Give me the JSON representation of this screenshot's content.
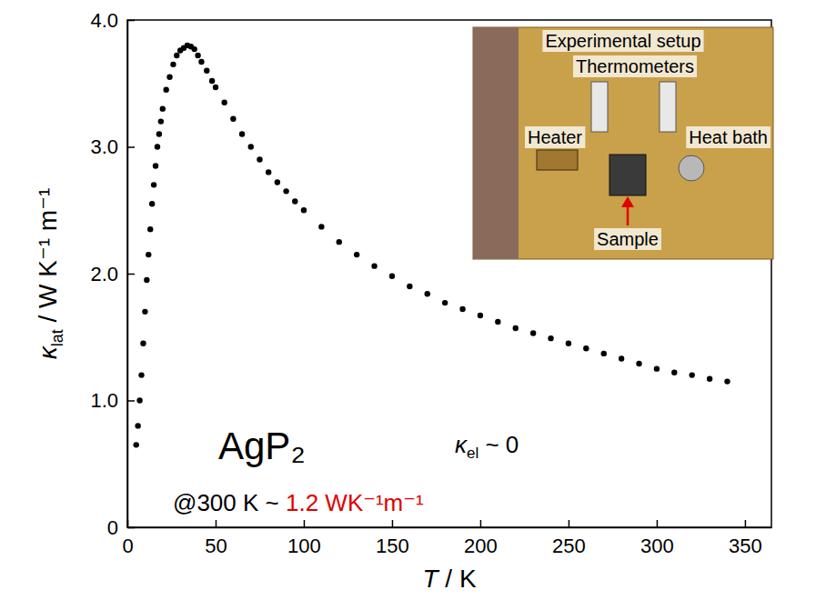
{
  "chart_data": {
    "type": "scatter",
    "x_label_symbol": "T",
    "x_label_unit": "/ K",
    "y_label_symbol": "κ",
    "y_label_subscript": "lat",
    "y_label_unit": " / W K⁻¹ m⁻¹",
    "xlim": [
      0,
      365
    ],
    "xticks": [
      0,
      50,
      100,
      150,
      200,
      250,
      300,
      350
    ],
    "ylim": [
      0,
      4
    ],
    "yticks": [
      0,
      {
        "value": 1,
        "label": "1.0"
      },
      {
        "value": 2,
        "label": "2.0"
      },
      {
        "value": 3,
        "label": "3.0"
      },
      {
        "value": 4,
        "label": "4.0"
      }
    ],
    "grid": false,
    "x": [
      5,
      6,
      7,
      8,
      9,
      10,
      11,
      12,
      13,
      14,
      15,
      16,
      17,
      18,
      19,
      20,
      22,
      24,
      26,
      28,
      30,
      32,
      34,
      36,
      38,
      40,
      42,
      45,
      48,
      50,
      55,
      60,
      65,
      70,
      75,
      80,
      85,
      90,
      95,
      100,
      110,
      120,
      130,
      140,
      150,
      160,
      170,
      180,
      190,
      200,
      210,
      220,
      230,
      240,
      250,
      260,
      270,
      280,
      290,
      300,
      310,
      320,
      330,
      340
    ],
    "series": [
      {
        "name": "AgP₂",
        "color": "#000000",
        "marker": "circle",
        "values": [
          0.65,
          0.8,
          1.0,
          1.2,
          1.45,
          1.7,
          1.95,
          2.15,
          2.35,
          2.55,
          2.7,
          2.85,
          3.0,
          3.1,
          3.2,
          3.3,
          3.45,
          3.55,
          3.65,
          3.72,
          3.76,
          3.78,
          3.8,
          3.79,
          3.77,
          3.72,
          3.67,
          3.6,
          3.52,
          3.47,
          3.35,
          3.22,
          3.1,
          3.0,
          2.9,
          2.8,
          2.72,
          2.65,
          2.57,
          2.5,
          2.37,
          2.25,
          2.15,
          2.06,
          1.98,
          1.9,
          1.84,
          1.77,
          1.72,
          1.67,
          1.62,
          1.57,
          1.53,
          1.49,
          1.45,
          1.41,
          1.37,
          1.33,
          1.29,
          1.25,
          1.22,
          1.2,
          1.17,
          1.15
        ]
      }
    ],
    "annotations": [
      {
        "text": "AgP₂"
      },
      {
        "symbol": "κ",
        "subscript": "el",
        "text": " ~ 0"
      },
      {
        "text": "@300 K ~ ",
        "highlight": "1.2 WK⁻¹m⁻¹"
      }
    ],
    "inset": {
      "title": "Experimental setup",
      "labels": [
        "Thermometers",
        "Heater",
        "Sample",
        "Heat bath"
      ]
    }
  }
}
